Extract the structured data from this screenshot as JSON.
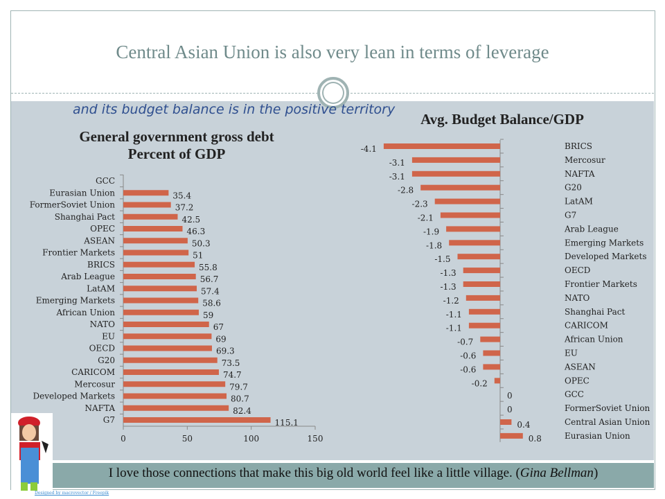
{
  "title": "Central Asian Union is also very lean in terms of leverage",
  "subtitle": "and its budget balance is in the positive territory",
  "quote_text": "I love those connections that make this big old world feel like a little village. (",
  "quote_author": "Gina Bellman",
  "quote_end": ")",
  "credit": "Designed by macrovector / Freepik",
  "colors": {
    "bar": "#d0654a",
    "background": "#c8d2d9",
    "strip": "#8aa9a9"
  },
  "chart_data": [
    {
      "type": "bar",
      "orientation": "horizontal",
      "title": "General government gross debt Percent of GDP",
      "categories": [
        "GCC",
        "Eurasian Union",
        "FormerSoviet Union",
        "Shanghai Pact",
        "OPEC",
        "ASEAN",
        "Frontier Markets",
        "BRICS",
        "Arab League",
        "LatAM",
        "Emerging Markets",
        "African Union",
        "NATO",
        "EU",
        "OECD",
        "G20",
        "CARICOM",
        "Mercosur",
        "Developed Markets",
        "NAFTA",
        "G7"
      ],
      "values": [
        null,
        35.4,
        37.2,
        42.5,
        46.3,
        50.3,
        51,
        55.8,
        56.7,
        57.4,
        58.6,
        59,
        67,
        69,
        69.3,
        73.5,
        74.7,
        79.7,
        80.7,
        82.4,
        115.1
      ],
      "xlim": [
        0,
        150
      ],
      "xticks": [
        0,
        50,
        100,
        150
      ],
      "grid": false
    },
    {
      "type": "bar",
      "orientation": "horizontal",
      "title": "Avg. Budget Balance/GDP",
      "categories": [
        "BRICS",
        "Mercosur",
        "NAFTA",
        "G20",
        "LatAM",
        "G7",
        "Arab League",
        "Emerging Markets",
        "Developed Markets",
        "OECD",
        "Frontier Markets",
        "NATO",
        "Shanghai Pact",
        "CARICOM",
        "African Union",
        "EU",
        "ASEAN",
        "OPEC",
        "GCC",
        "FormerSoviet Union",
        "Central Asian Union",
        "Eurasian Union"
      ],
      "values": [
        -4.1,
        -3.1,
        -3.1,
        -2.8,
        -2.3,
        -2.1,
        -1.9,
        -1.8,
        -1.5,
        -1.3,
        -1.3,
        -1.2,
        -1.1,
        -1.1,
        -0.7,
        -0.6,
        -0.6,
        -0.2,
        0,
        0,
        0.4,
        0.8
      ],
      "grid": false
    }
  ]
}
